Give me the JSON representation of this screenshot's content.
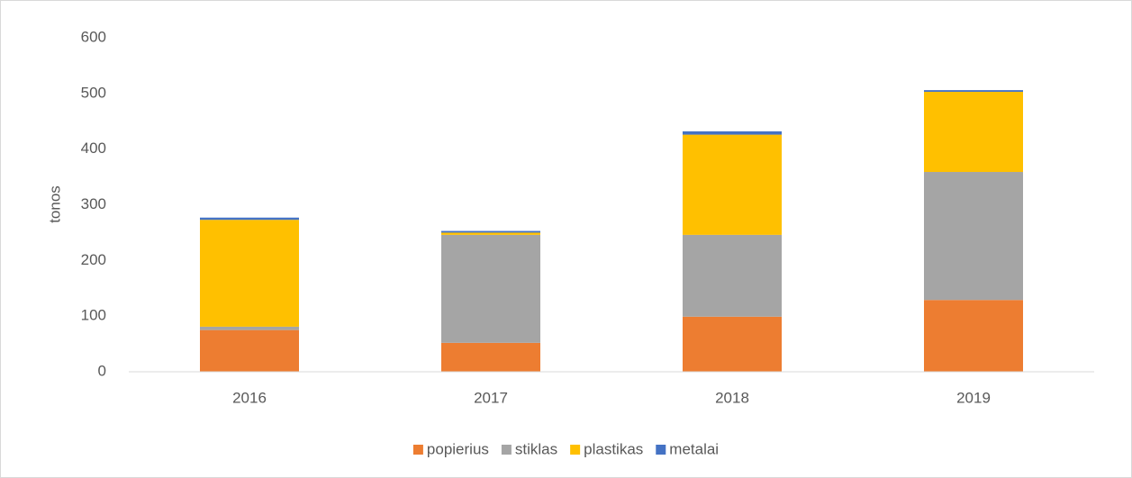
{
  "chart_data": {
    "type": "stacked_bar",
    "y_label": "tonos",
    "categories": [
      "2016",
      "2017",
      "2018",
      "2019"
    ],
    "series": [
      {
        "name": "popierius",
        "color": "#ed7d31",
        "values": [
          75,
          52,
          99,
          129
        ]
      },
      {
        "name": "stiklas",
        "color": "#a5a5a5",
        "values": [
          6,
          194,
          147,
          230
        ]
      },
      {
        "name": "plastikas",
        "color": "#ffc000",
        "values": [
          192,
          4,
          180,
          144
        ]
      },
      {
        "name": "metalai",
        "color": "#4472c4",
        "values": [
          4,
          3,
          6,
          3
        ]
      }
    ],
    "ylim": [
      0,
      600
    ],
    "yticks": [
      0,
      100,
      200,
      300,
      400,
      500,
      600
    ],
    "grid": false,
    "legend": "bottom"
  }
}
